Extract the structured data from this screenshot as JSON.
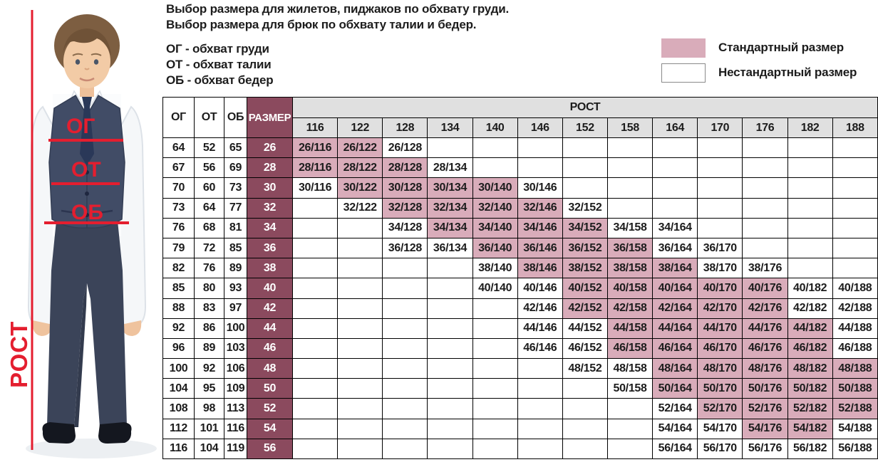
{
  "header": {
    "title_line1": "Выбор размера для жилетов, пиджаков по обхвату груди.",
    "title_line2": "Выбор размера для брюк по обхвату талии и бедер.",
    "abbr_line1": "ОГ - обхват груди",
    "abbr_line2": "ОТ - обхват талии",
    "abbr_line3": "ОБ - обхват бедер"
  },
  "legend": {
    "standard_label": "Стандартный размер",
    "nonstandard_label": "Нестандартный размер"
  },
  "photo": {
    "height_label": "РОСТ",
    "chest_label": "ОГ",
    "waist_label": "ОТ",
    "hips_label": "ОБ"
  },
  "colors": {
    "standard_fill": "#d9acba",
    "size_column_fill": "#8b4a5e",
    "height_header_fill": "#e0e0e0",
    "annotation_red": "#e41e2f"
  },
  "chart_data": {
    "type": "table",
    "corner_headers": [
      "ОГ",
      "ОТ",
      "ОБ",
      "РАЗМЕР"
    ],
    "rost_header": "РОСТ",
    "heights": [
      "116",
      "122",
      "128",
      "134",
      "140",
      "146",
      "152",
      "158",
      "164",
      "170",
      "176",
      "182",
      "188"
    ],
    "legend": {
      "standard": "Стандартный размер",
      "nonstandard": "Нестандартный размер"
    },
    "rows": [
      {
        "og": "64",
        "ot": "52",
        "ob": "65",
        "size": "26",
        "cells": [
          {
            "text": "26/116",
            "standard": true
          },
          {
            "text": "26/122",
            "standard": true
          },
          {
            "text": "26/128",
            "standard": false
          },
          null,
          null,
          null,
          null,
          null,
          null,
          null,
          null,
          null,
          null
        ]
      },
      {
        "og": "67",
        "ot": "56",
        "ob": "69",
        "size": "28",
        "cells": [
          {
            "text": "28/116",
            "standard": true
          },
          {
            "text": "28/122",
            "standard": true
          },
          {
            "text": "28/128",
            "standard": true
          },
          {
            "text": "28/134",
            "standard": false
          },
          null,
          null,
          null,
          null,
          null,
          null,
          null,
          null,
          null
        ]
      },
      {
        "og": "70",
        "ot": "60",
        "ob": "73",
        "size": "30",
        "cells": [
          {
            "text": "30/116",
            "standard": false
          },
          {
            "text": "30/122",
            "standard": true
          },
          {
            "text": "30/128",
            "standard": true
          },
          {
            "text": "30/134",
            "standard": true
          },
          {
            "text": "30/140",
            "standard": true
          },
          {
            "text": "30/146",
            "standard": false
          },
          null,
          null,
          null,
          null,
          null,
          null,
          null
        ]
      },
      {
        "og": "73",
        "ot": "64",
        "ob": "77",
        "size": "32",
        "cells": [
          null,
          {
            "text": "32/122",
            "standard": false
          },
          {
            "text": "32/128",
            "standard": true
          },
          {
            "text": "32/134",
            "standard": true
          },
          {
            "text": "32/140",
            "standard": true
          },
          {
            "text": "32/146",
            "standard": true
          },
          {
            "text": "32/152",
            "standard": false
          },
          null,
          null,
          null,
          null,
          null,
          null
        ]
      },
      {
        "og": "76",
        "ot": "68",
        "ob": "81",
        "size": "34",
        "cells": [
          null,
          null,
          {
            "text": "34/128",
            "standard": false
          },
          {
            "text": "34/134",
            "standard": true
          },
          {
            "text": "34/140",
            "standard": true
          },
          {
            "text": "34/146",
            "standard": true
          },
          {
            "text": "34/152",
            "standard": true
          },
          {
            "text": "34/158",
            "standard": false
          },
          {
            "text": "34/164",
            "standard": false
          },
          null,
          null,
          null,
          null
        ]
      },
      {
        "og": "79",
        "ot": "72",
        "ob": "85",
        "size": "36",
        "cells": [
          null,
          null,
          {
            "text": "36/128",
            "standard": false
          },
          {
            "text": "36/134",
            "standard": false
          },
          {
            "text": "36/140",
            "standard": true
          },
          {
            "text": "36/146",
            "standard": true
          },
          {
            "text": "36/152",
            "standard": true
          },
          {
            "text": "36/158",
            "standard": true
          },
          {
            "text": "36/164",
            "standard": false
          },
          {
            "text": "36/170",
            "standard": false
          },
          null,
          null,
          null
        ]
      },
      {
        "og": "82",
        "ot": "76",
        "ob": "89",
        "size": "38",
        "cells": [
          null,
          null,
          null,
          null,
          {
            "text": "38/140",
            "standard": false
          },
          {
            "text": "38/146",
            "standard": true
          },
          {
            "text": "38/152",
            "standard": true
          },
          {
            "text": "38/158",
            "standard": true
          },
          {
            "text": "38/164",
            "standard": true
          },
          {
            "text": "38/170",
            "standard": false
          },
          {
            "text": "38/176",
            "standard": false
          },
          null,
          null
        ]
      },
      {
        "og": "85",
        "ot": "80",
        "ob": "93",
        "size": "40",
        "cells": [
          null,
          null,
          null,
          null,
          {
            "text": "40/140",
            "standard": false
          },
          {
            "text": "40/146",
            "standard": false
          },
          {
            "text": "40/152",
            "standard": true
          },
          {
            "text": "40/158",
            "standard": true
          },
          {
            "text": "40/164",
            "standard": true
          },
          {
            "text": "40/170",
            "standard": true
          },
          {
            "text": "40/176",
            "standard": true
          },
          {
            "text": "40/182",
            "standard": false
          },
          {
            "text": "40/188",
            "standard": false
          }
        ]
      },
      {
        "og": "88",
        "ot": "83",
        "ob": "97",
        "size": "42",
        "cells": [
          null,
          null,
          null,
          null,
          null,
          {
            "text": "42/146",
            "standard": false
          },
          {
            "text": "42/152",
            "standard": true
          },
          {
            "text": "42/158",
            "standard": true
          },
          {
            "text": "42/164",
            "standard": true
          },
          {
            "text": "42/170",
            "standard": true
          },
          {
            "text": "42/176",
            "standard": true
          },
          {
            "text": "42/182",
            "standard": false
          },
          {
            "text": "42/188",
            "standard": false
          }
        ]
      },
      {
        "og": "92",
        "ot": "86",
        "ob": "100",
        "size": "44",
        "cells": [
          null,
          null,
          null,
          null,
          null,
          {
            "text": "44/146",
            "standard": false
          },
          {
            "text": "44/152",
            "standard": false
          },
          {
            "text": "44/158",
            "standard": true
          },
          {
            "text": "44/164",
            "standard": true
          },
          {
            "text": "44/170",
            "standard": true
          },
          {
            "text": "44/176",
            "standard": true
          },
          {
            "text": "44/182",
            "standard": true
          },
          {
            "text": "44/188",
            "standard": false
          }
        ]
      },
      {
        "og": "96",
        "ot": "89",
        "ob": "103",
        "size": "46",
        "cells": [
          null,
          null,
          null,
          null,
          null,
          {
            "text": "46/146",
            "standard": false
          },
          {
            "text": "46/152",
            "standard": false
          },
          {
            "text": "46/158",
            "standard": true
          },
          {
            "text": "46/164",
            "standard": true
          },
          {
            "text": "46/170",
            "standard": true
          },
          {
            "text": "46/176",
            "standard": true
          },
          {
            "text": "46/182",
            "standard": true
          },
          {
            "text": "46/188",
            "standard": false
          }
        ]
      },
      {
        "og": "100",
        "ot": "92",
        "ob": "106",
        "size": "48",
        "cells": [
          null,
          null,
          null,
          null,
          null,
          null,
          {
            "text": "48/152",
            "standard": false
          },
          {
            "text": "48/158",
            "standard": false
          },
          {
            "text": "48/164",
            "standard": true
          },
          {
            "text": "48/170",
            "standard": true
          },
          {
            "text": "48/176",
            "standard": true
          },
          {
            "text": "48/182",
            "standard": true
          },
          {
            "text": "48/188",
            "standard": true
          }
        ]
      },
      {
        "og": "104",
        "ot": "95",
        "ob": "109",
        "size": "50",
        "cells": [
          null,
          null,
          null,
          null,
          null,
          null,
          null,
          {
            "text": "50/158",
            "standard": false
          },
          {
            "text": "50/164",
            "standard": true
          },
          {
            "text": "50/170",
            "standard": true
          },
          {
            "text": "50/176",
            "standard": true
          },
          {
            "text": "50/182",
            "standard": true
          },
          {
            "text": "50/188",
            "standard": true
          }
        ]
      },
      {
        "og": "108",
        "ot": "98",
        "ob": "113",
        "size": "52",
        "cells": [
          null,
          null,
          null,
          null,
          null,
          null,
          null,
          null,
          {
            "text": "52/164",
            "standard": false
          },
          {
            "text": "52/170",
            "standard": true
          },
          {
            "text": "52/176",
            "standard": true
          },
          {
            "text": "52/182",
            "standard": true
          },
          {
            "text": "52/188",
            "standard": true
          }
        ]
      },
      {
        "og": "112",
        "ot": "101",
        "ob": "116",
        "size": "54",
        "cells": [
          null,
          null,
          null,
          null,
          null,
          null,
          null,
          null,
          {
            "text": "54/164",
            "standard": false
          },
          {
            "text": "54/170",
            "standard": false
          },
          {
            "text": "54/176",
            "standard": true
          },
          {
            "text": "54/182",
            "standard": true
          },
          {
            "text": "54/188",
            "standard": false
          }
        ]
      },
      {
        "og": "116",
        "ot": "104",
        "ob": "119",
        "size": "56",
        "cells": [
          null,
          null,
          null,
          null,
          null,
          null,
          null,
          null,
          {
            "text": "56/164",
            "standard": false
          },
          {
            "text": "56/170",
            "standard": false
          },
          {
            "text": "56/176",
            "standard": false
          },
          {
            "text": "56/182",
            "standard": false
          },
          {
            "text": "56/188",
            "standard": false
          }
        ]
      }
    ]
  }
}
